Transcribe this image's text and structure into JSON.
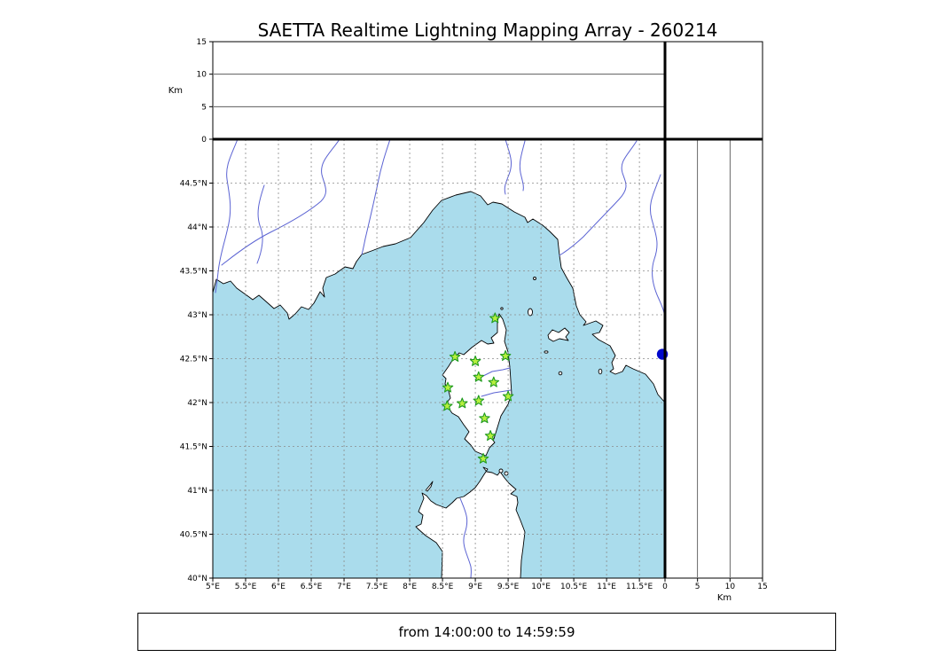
{
  "title": "SAETTA Realtime Lightning Mapping Array - 260214",
  "caption": "from 14:00:00 to 14:59:59",
  "axes": {
    "km_label": "Km",
    "lon_ticks": [
      5,
      5.5,
      6,
      6.5,
      7,
      7.5,
      8,
      8.5,
      9,
      9.5,
      10,
      10.5,
      11,
      11.5
    ],
    "lon_tick_labels": [
      "5°E",
      "5.5°E",
      "6°E",
      "6.5°E",
      "7°E",
      "7.5°E",
      "8°E",
      "8.5°E",
      "9°E",
      "9.5°E",
      "10°E",
      "10.5°E",
      "11°E",
      "11.5°E"
    ],
    "lat_ticks": [
      40,
      40.5,
      41,
      41.5,
      42,
      42.5,
      43,
      43.5,
      44,
      44.5
    ],
    "lat_tick_labels": [
      "40°N",
      "40.5°N",
      "41°N",
      "41.5°N",
      "42°N",
      "42.5°N",
      "43°N",
      "43.5°N",
      "44°N",
      "44.5°N"
    ],
    "alt_ticks": [
      0,
      5,
      10,
      15
    ],
    "alt_tick_labels": [
      "0",
      "5",
      "10",
      "15"
    ]
  },
  "colors": {
    "sea": "#aadcec",
    "land": "#ffffff",
    "coast": "#000000",
    "river": "#5b63d3",
    "grid": "#8a8a8a",
    "station-fill": "#b6ef3e",
    "station-edge": "#1f9a1f",
    "lightning-dot": "#0007cc"
  },
  "chart_data": {
    "type": "scatter",
    "title": "SAETTA Realtime Lightning Mapping Array - 260214",
    "time_window": "from 14:00:00 to 14:59:59",
    "map_panel": {
      "xlim_deg_e": [
        5,
        11.89
      ],
      "ylim_deg_n": [
        40,
        45
      ],
      "x_ticks_deg_e": [
        5,
        5.5,
        6,
        6.5,
        7,
        7.5,
        8,
        8.5,
        9,
        9.5,
        10,
        10.5,
        11,
        11.5
      ],
      "y_ticks_deg_n": [
        40,
        40.5,
        41,
        41.5,
        42,
        42.5,
        43,
        43.5,
        44,
        44.5
      ],
      "grid": "dashed every 0.5 degree"
    },
    "altitude_panels": {
      "label": "Km",
      "ticks_km": [
        0,
        5,
        10,
        15
      ],
      "lim_km": [
        0,
        15
      ],
      "gridlines_km": [
        5,
        10
      ]
    },
    "stations": {
      "marker": "green-star",
      "points_lon_lat": [
        [
          9.3,
          42.96
        ],
        [
          8.69,
          42.52
        ],
        [
          9.0,
          42.47
        ],
        [
          9.46,
          42.53
        ],
        [
          9.05,
          42.29
        ],
        [
          9.28,
          42.23
        ],
        [
          8.58,
          42.17
        ],
        [
          9.5,
          42.07
        ],
        [
          8.57,
          41.96
        ],
        [
          8.8,
          41.99
        ],
        [
          9.05,
          42.02
        ],
        [
          9.14,
          41.82
        ],
        [
          9.23,
          41.62
        ],
        [
          9.12,
          41.36
        ]
      ]
    },
    "lightning_points": {
      "marker": "blue-dot",
      "points_lon_lat": [
        [
          11.85,
          42.55
        ]
      ]
    }
  }
}
